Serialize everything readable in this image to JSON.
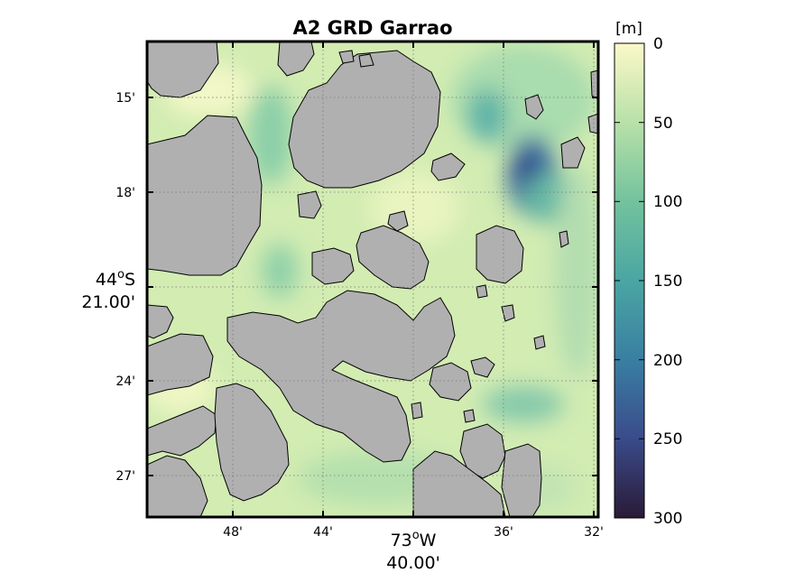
{
  "map": {
    "title": "A2 GRD Garrao",
    "x_ticks": [
      "48'",
      "44'",
      "36'",
      "32'"
    ],
    "x_center_deg": "73",
    "x_center_hemi": "W",
    "x_center_min": "40.00'",
    "y_ticks": [
      "15'",
      "18'",
      "24'",
      "27'"
    ],
    "y_center_deg": "44",
    "y_center_hemi": "S",
    "y_center_min": "21.00'",
    "degree_symbol": "o",
    "land_color": "#b0b0b0",
    "coast_color": "#000000"
  },
  "colorbar": {
    "unit": "[m]",
    "ticks": [
      "0",
      "50",
      "100",
      "150",
      "200",
      "250",
      "300"
    ],
    "colormap": [
      "#2a1a37",
      "#3a4c8c",
      "#397ea1",
      "#4aa6a3",
      "#74c39d",
      "#b7e0a8",
      "#fbf8c8"
    ]
  }
}
